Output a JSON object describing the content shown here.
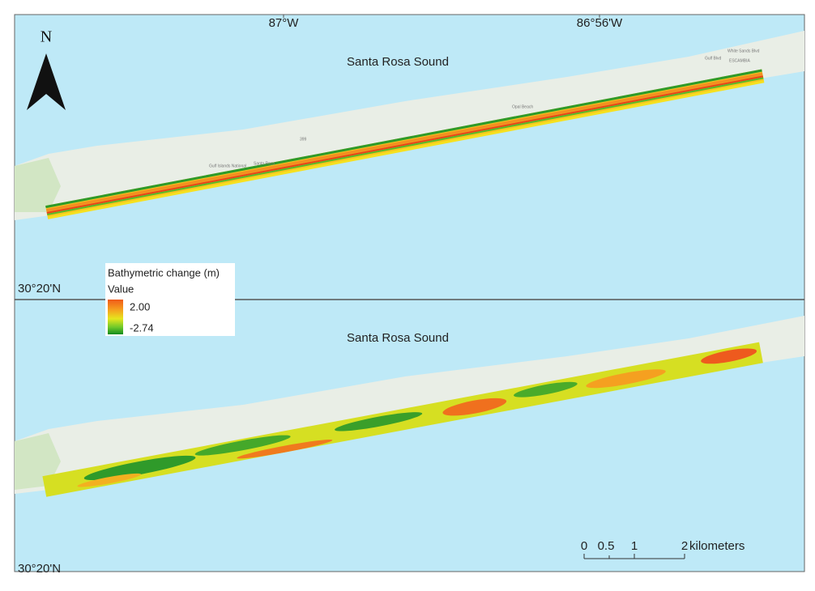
{
  "north_arrow": "N",
  "longitudes": [
    "87°W",
    "86°56'W"
  ],
  "latitudes": [
    "30°20'N",
    "30°20'N"
  ],
  "panels": [
    {
      "water_label": "Santa Rosa Sound"
    },
    {
      "water_label": "Santa Rosa Sound"
    }
  ],
  "place_labels": [
    "Gulf Islands National",
    "Santa Rosa",
    "Opal Beach",
    "Gulf Blvd",
    "White Sands Blvd",
    "ESCAMBIA",
    "399"
  ],
  "legend": {
    "title": "Bathymetric change (m)",
    "subtitle": "Value",
    "high": "2.00",
    "low": "-2.74"
  },
  "scale_bar": {
    "ticks": [
      "0",
      "0.5",
      "1",
      "2"
    ],
    "unit": "kilometers"
  }
}
